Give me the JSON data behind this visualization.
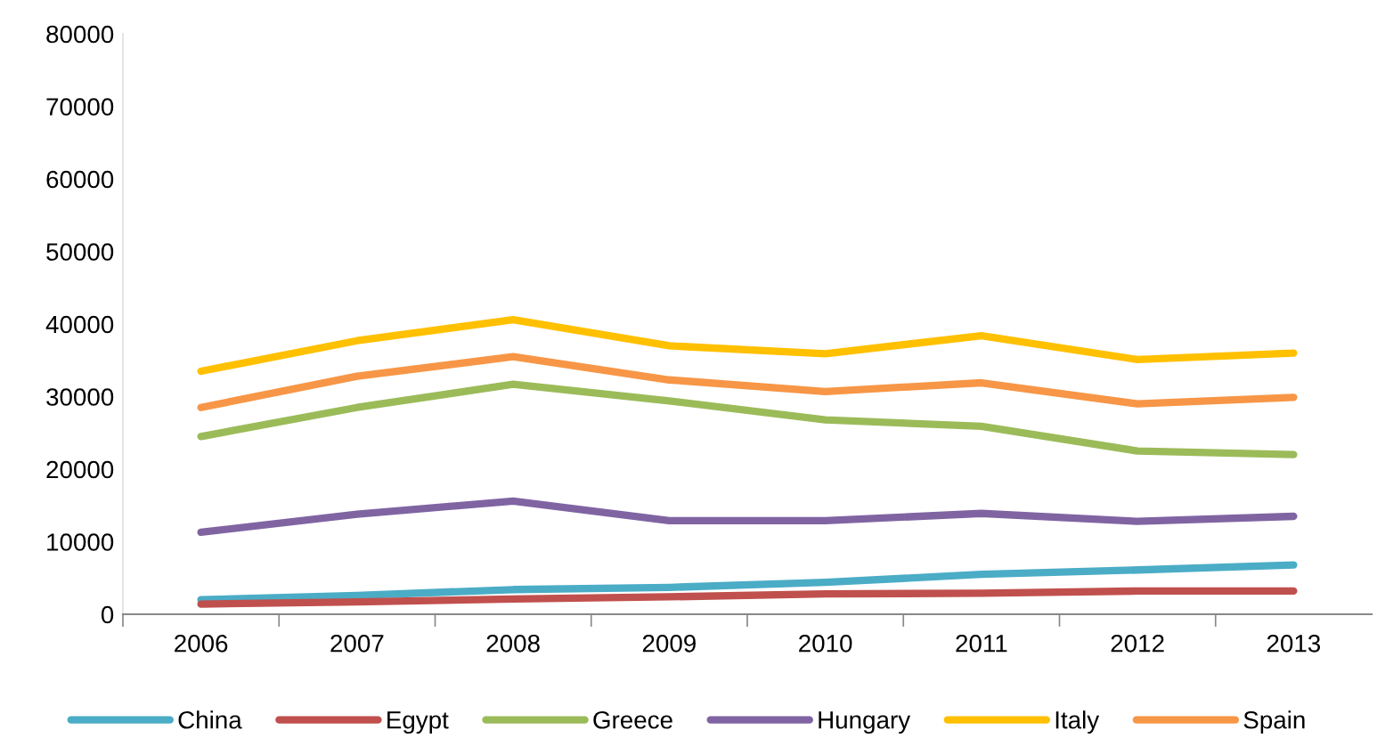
{
  "chart_data": {
    "type": "line",
    "categories": [
      "2006",
      "2007",
      "2008",
      "2009",
      "2010",
      "2011",
      "2012",
      "2013"
    ],
    "series": [
      {
        "name": "China",
        "color": "#4bacc6",
        "values": [
          2000,
          2600,
          3400,
          3700,
          4400,
          5500,
          6100,
          6800
        ]
      },
      {
        "name": "Egypt",
        "color": "#c0504d",
        "values": [
          1400,
          1700,
          2100,
          2400,
          2800,
          2900,
          3200,
          3200
        ]
      },
      {
        "name": "Greece",
        "color": "#9bbb59",
        "values": [
          24500,
          28500,
          31700,
          29400,
          26800,
          25900,
          22500,
          22000
        ]
      },
      {
        "name": "Hungary",
        "color": "#8064a2",
        "values": [
          11300,
          13800,
          15600,
          12900,
          12900,
          13900,
          12800,
          13500
        ]
      },
      {
        "name": "Italy",
        "color": "#ffc000",
        "values": [
          33500,
          37700,
          40600,
          37000,
          35900,
          38400,
          35100,
          36000
        ]
      },
      {
        "name": "Spain",
        "color": "#f79646",
        "values": [
          28500,
          32800,
          35500,
          32300,
          30700,
          31900,
          29000,
          29900
        ]
      }
    ],
    "ylim": [
      0,
      80000
    ],
    "yticks": [
      0,
      10000,
      20000,
      30000,
      40000,
      50000,
      60000,
      70000,
      80000
    ],
    "grid": false,
    "legend": "bottom",
    "marker": "none",
    "line_style": "solid"
  }
}
